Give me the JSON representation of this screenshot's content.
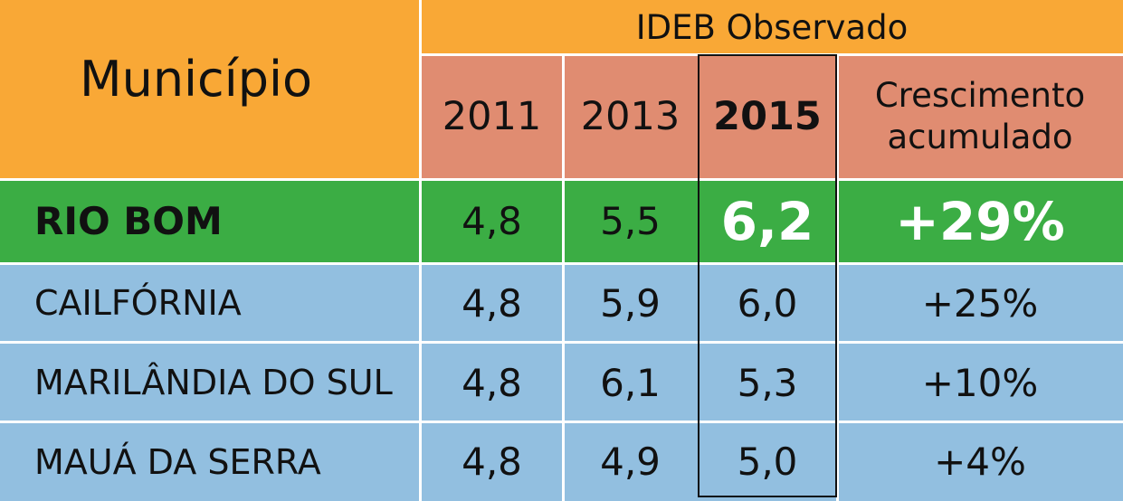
{
  "header": {
    "municipio": "Município",
    "group": "IDEB Observado",
    "years": [
      "2011",
      "2013",
      "2015"
    ],
    "growth_line1": "Crescimento",
    "growth_line2": "acumulado"
  },
  "rows": [
    {
      "name": "RIO BOM",
      "y2011": "4,8",
      "y2013": "5,5",
      "y2015": "6,2",
      "growth": "+29%"
    },
    {
      "name": "CAILFÓRNIA",
      "y2011": "4,8",
      "y2013": "5,9",
      "y2015": "6,0",
      "growth": "+25%"
    },
    {
      "name": "MARILÂNDIA DO SUL",
      "y2011": "4,8",
      "y2013": "6,1",
      "y2015": "5,3",
      "growth": "+10%"
    },
    {
      "name": "MAUÁ DA SERRA",
      "y2011": "4,8",
      "y2013": "4,9",
      "y2015": "5,0",
      "growth": "+4%"
    }
  ],
  "colors": {
    "header_orange": "#f9a836",
    "header_salmon": "#e08c71",
    "highlight_green": "#3bad44",
    "row_blue": "#92bfe0"
  }
}
